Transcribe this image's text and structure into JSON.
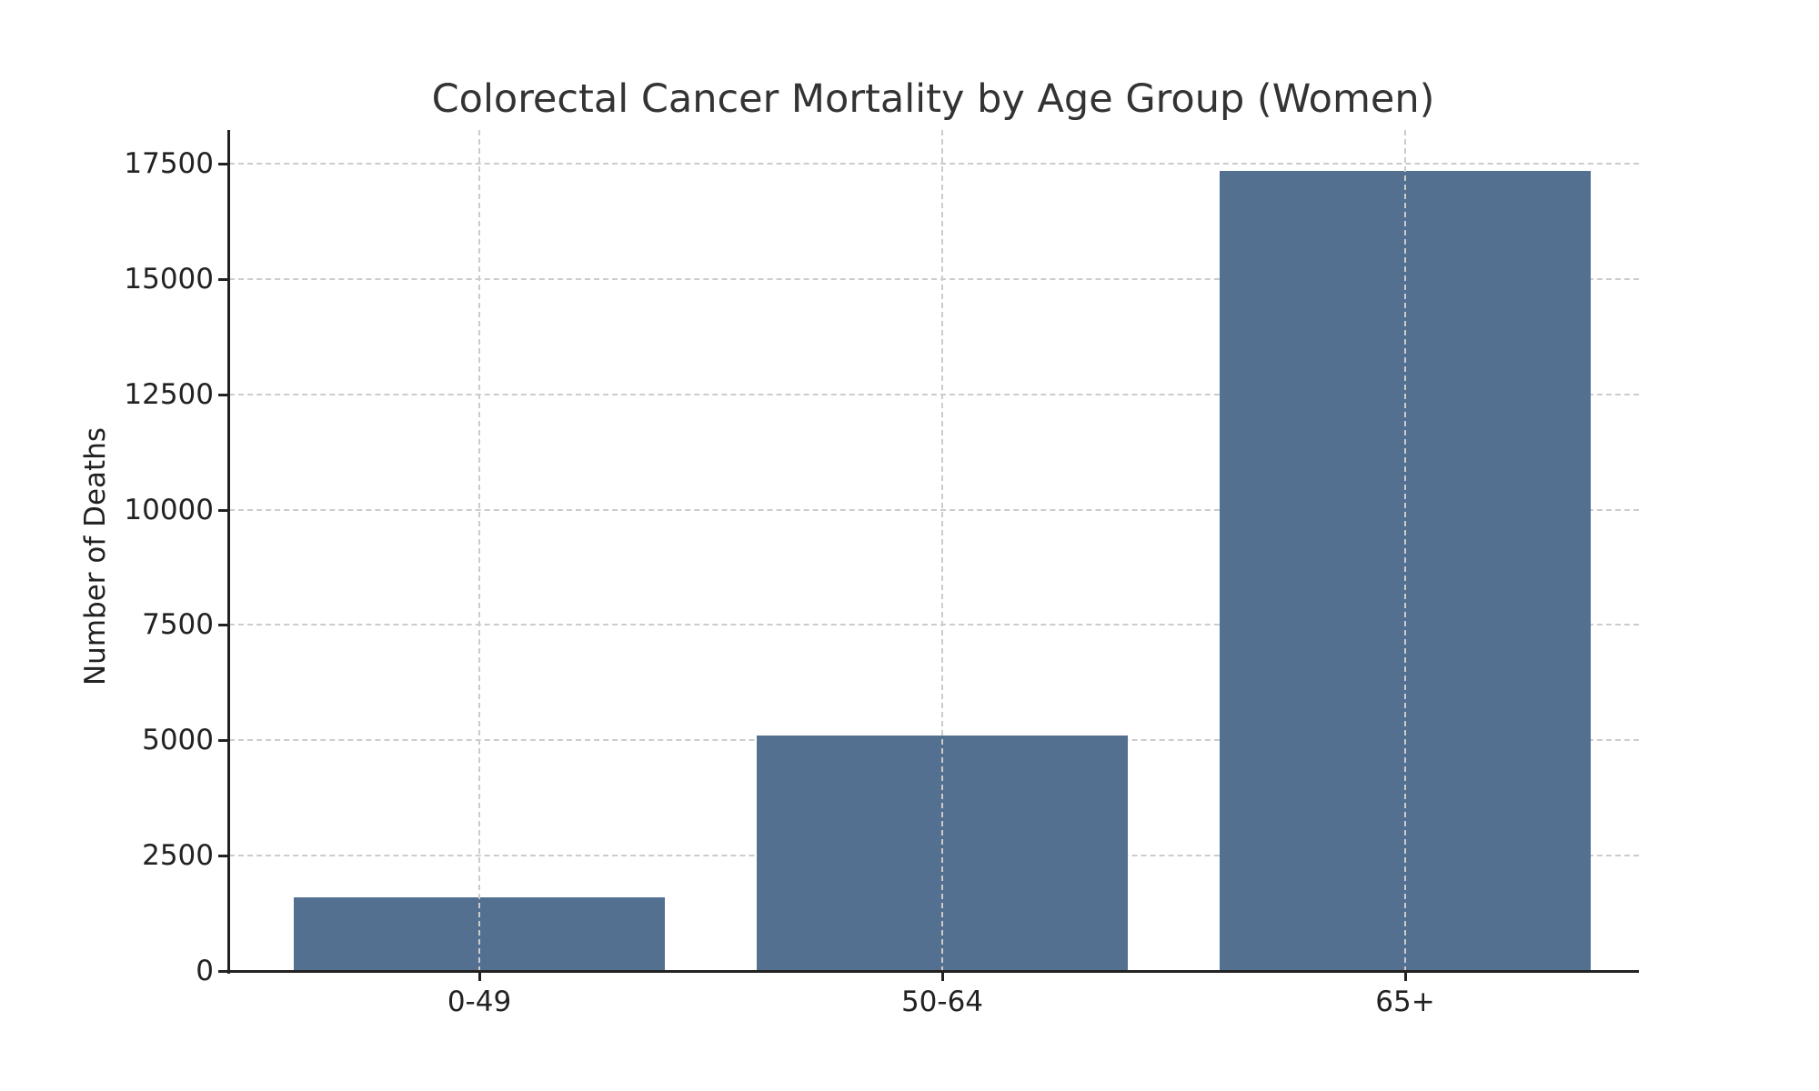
{
  "chart_data": {
    "type": "bar",
    "title": "Colorectal Cancer Mortality by Age Group (Women)",
    "xlabel": "",
    "ylabel": "Number of Deaths",
    "categories": [
      "0-49",
      "50-64",
      "65+"
    ],
    "values": [
      1600,
      5100,
      17350
    ],
    "ylim": [
      0,
      18200
    ],
    "yticks": [
      0,
      2500,
      5000,
      7500,
      10000,
      12500,
      15000,
      17500
    ],
    "ytick_labels": [
      "0",
      "2500",
      "5000",
      "7500",
      "10000",
      "12500",
      "15000",
      "17500"
    ],
    "grid": true,
    "grid_style": "dashed",
    "legend": null,
    "bar_color": "#537090"
  }
}
